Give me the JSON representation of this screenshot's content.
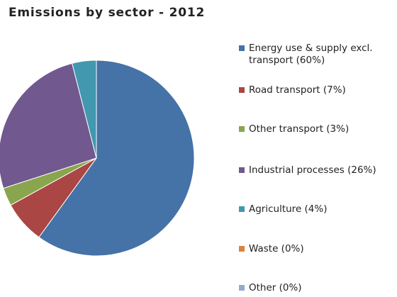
{
  "chart_data": {
    "type": "pie",
    "title": "Emissions by sector - 2012",
    "slices": [
      {
        "label": "Energy use & supply excl. transport (60%)",
        "value": 60,
        "color": "#4572a7"
      },
      {
        "label": "Road transport (7%)",
        "value": 7,
        "color": "#aa4643"
      },
      {
        "label": "Other transport (3%)",
        "value": 3,
        "color": "#89a54e"
      },
      {
        "label": "Industrial processes (26%)",
        "value": 26,
        "color": "#71588f"
      },
      {
        "label": "Agriculture  (4%)",
        "value": 4,
        "color": "#4198af"
      },
      {
        "label": "Waste (0%)",
        "value": 0,
        "color": "#db843d"
      },
      {
        "label": "Other (0%)",
        "value": 0,
        "color": "#93a9cf"
      }
    ],
    "legend_position": "right"
  }
}
